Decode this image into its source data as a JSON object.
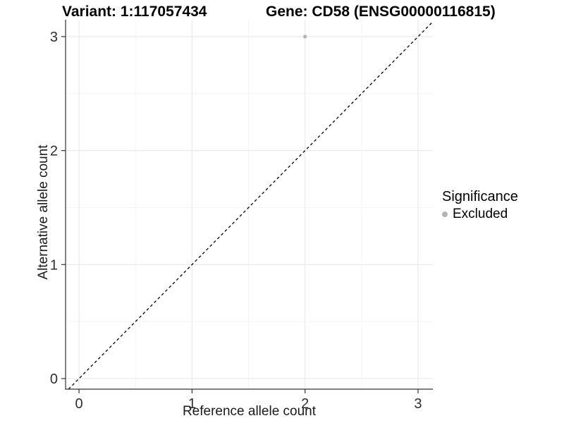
{
  "titles": {
    "left": "Variant: 1:117057434",
    "right": "Gene: CD58 (ENSG00000116815)"
  },
  "legend": {
    "title": "Significance",
    "items": [
      {
        "label": "Excluded",
        "color": "#b3b3b3"
      }
    ]
  },
  "colors": {
    "background": "#ffffff",
    "grid_major": "#e8e8e8",
    "grid_minor": "#f4f4f4",
    "axis_line": "#333333",
    "tick_text": "#2e2e2e",
    "reference_line": "#000000",
    "point_excluded": "#b3b3b3"
  },
  "chart_data": {
    "type": "scatter",
    "title": "Variant: 1:117057434   Gene: CD58 (ENSG00000116815)",
    "xlabel": "Reference allele count",
    "ylabel": "Alternative allele count",
    "xlim": [
      -0.119,
      3.131
    ],
    "ylim": [
      -0.093,
      3.148
    ],
    "x_ticks": [
      0,
      1,
      2,
      3
    ],
    "y_ticks": [
      0,
      1,
      2,
      3
    ],
    "minor_ticks_x": [
      0.5,
      1.5,
      2.5
    ],
    "minor_ticks_y": [
      0.5,
      1.5,
      2.5
    ],
    "grid": true,
    "legend_position": "right",
    "legend_title": "Significance",
    "series": [
      {
        "name": "Excluded",
        "color": "#b3b3b3",
        "points": [
          {
            "x": 2,
            "y": 3
          }
        ]
      }
    ],
    "reference_line": {
      "equation": "y = x",
      "style": "dashed",
      "color": "#000000"
    }
  }
}
